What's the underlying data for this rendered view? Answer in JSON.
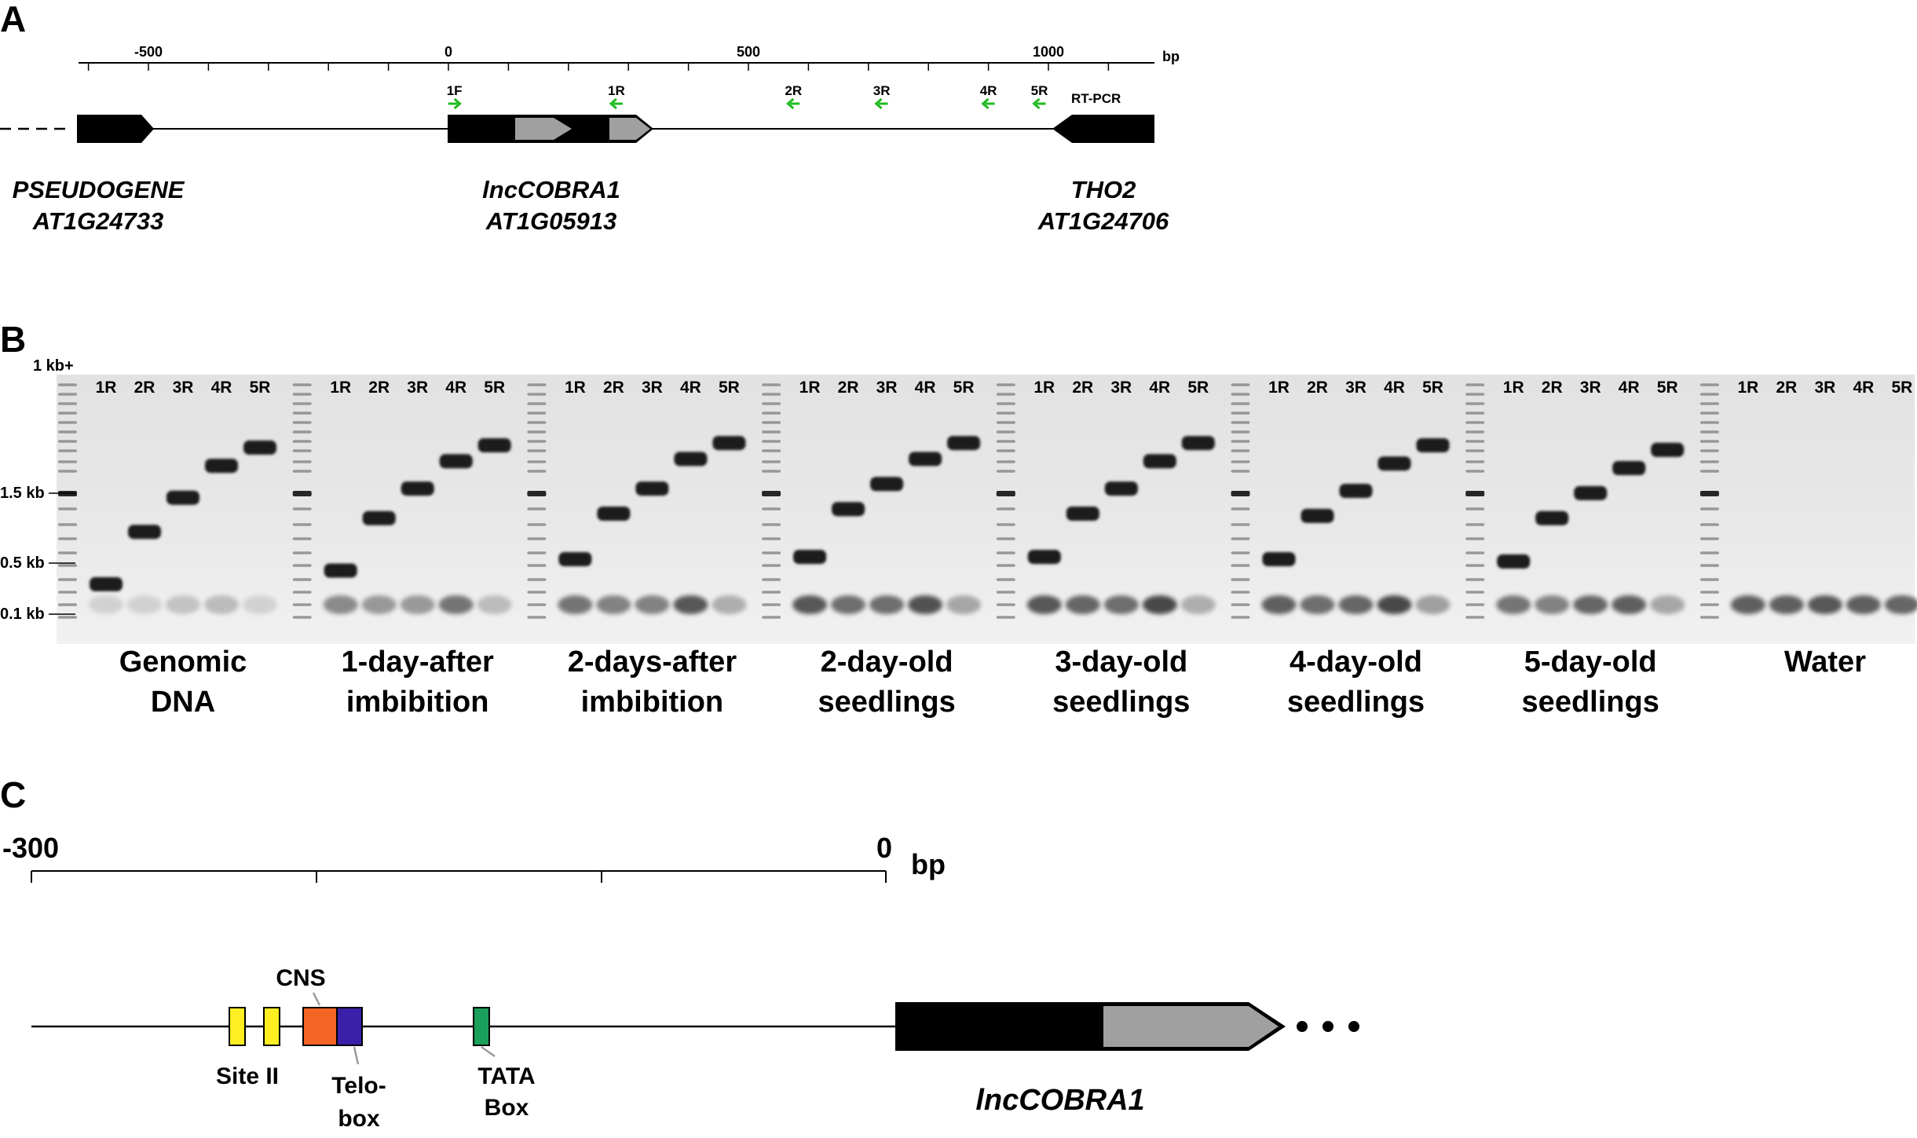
{
  "panels": {
    "A": "A",
    "B": "B",
    "C": "C"
  },
  "panel_a": {
    "axis_unit": "bp",
    "ticks": [
      {
        "label": "-500",
        "value": -500
      },
      {
        "label": "0",
        "value": 0
      },
      {
        "label": "500",
        "value": 500
      },
      {
        "label": "1000",
        "value": 1000
      }
    ],
    "primers": [
      {
        "label": "1F",
        "value": 10,
        "direction": "forward"
      },
      {
        "label": "1R",
        "value": 280,
        "direction": "reverse"
      },
      {
        "label": "2R",
        "value": 575,
        "direction": "reverse"
      },
      {
        "label": "3R",
        "value": 722,
        "direction": "reverse"
      },
      {
        "label": "4R",
        "value": 900,
        "direction": "reverse"
      },
      {
        "label": "5R",
        "value": 985,
        "direction": "reverse"
      }
    ],
    "assay_label": "RT-PCR",
    "genes": [
      {
        "name": "PSEUDOGENE",
        "id": "AT1G24733"
      },
      {
        "name": "lncCOBRA1",
        "id": "AT1G05913"
      },
      {
        "name": "THO2",
        "id": "AT1G24706"
      }
    ],
    "colors": {
      "primer_arrow": "#22bb22",
      "gene_body": "#000000",
      "gene_core": "#a0a0a0"
    }
  },
  "panel_b": {
    "ladder_top_label": "1 kb+",
    "size_markers": [
      "1.5 kb",
      "0.5 kb",
      "0.1 kb"
    ],
    "lane_labels": [
      "1R",
      "2R",
      "3R",
      "4R",
      "5R"
    ],
    "conditions": [
      {
        "line1": "Genomic",
        "line2": "DNA",
        "bands": [
          0.09,
          0.32,
          0.47,
          0.61,
          0.69
        ],
        "primer_dimer": [
          0.05,
          0.05,
          0.15,
          0.2,
          0.05
        ]
      },
      {
        "line1": "1-day-after",
        "line2": "imbibition",
        "bands": [
          0.15,
          0.38,
          0.51,
          0.63,
          0.7
        ],
        "primer_dimer": [
          0.55,
          0.45,
          0.45,
          0.7,
          0.2
        ]
      },
      {
        "line1": "2-days-after",
        "line2": "imbibition",
        "bands": [
          0.2,
          0.4,
          0.51,
          0.64,
          0.71
        ],
        "primer_dimer": [
          0.7,
          0.6,
          0.6,
          0.9,
          0.3
        ]
      },
      {
        "line1": "2-day-old",
        "line2": "seedlings",
        "bands": [
          0.21,
          0.42,
          0.53,
          0.64,
          0.71
        ],
        "primer_dimer": [
          0.9,
          0.75,
          0.75,
          0.95,
          0.35
        ]
      },
      {
        "line1": "3-day-old",
        "line2": "seedlings",
        "bands": [
          0.21,
          0.4,
          0.51,
          0.63,
          0.71
        ],
        "primer_dimer": [
          0.9,
          0.8,
          0.75,
          1.0,
          0.3
        ]
      },
      {
        "line1": "4-day-old",
        "line2": "seedlings",
        "bands": [
          0.2,
          0.39,
          0.5,
          0.62,
          0.7
        ],
        "primer_dimer": [
          0.85,
          0.75,
          0.8,
          1.0,
          0.4
        ]
      },
      {
        "line1": "5-day-old",
        "line2": "seedlings",
        "bands": [
          0.19,
          0.38,
          0.49,
          0.6,
          0.68
        ],
        "primer_dimer": [
          0.7,
          0.6,
          0.8,
          0.85,
          0.35
        ]
      },
      {
        "line1": "Water",
        "line2": "",
        "bands": [
          null,
          null,
          null,
          null,
          null
        ],
        "primer_dimer": [
          0.85,
          0.85,
          0.9,
          0.85,
          0.8
        ]
      }
    ]
  },
  "panel_c": {
    "scale_start": "-300",
    "scale_end": "0",
    "unit": "bp",
    "elements": [
      {
        "label": "Site II",
        "color": "#ffee22"
      },
      {
        "label": "CNS",
        "color": "#f26522"
      },
      {
        "label": "Telo-",
        "label2": "box",
        "color": "#3a1fa8"
      },
      {
        "label": "TATA",
        "label2": "Box",
        "color": "#1aa05a"
      }
    ],
    "gene": "lncCOBRA1"
  }
}
